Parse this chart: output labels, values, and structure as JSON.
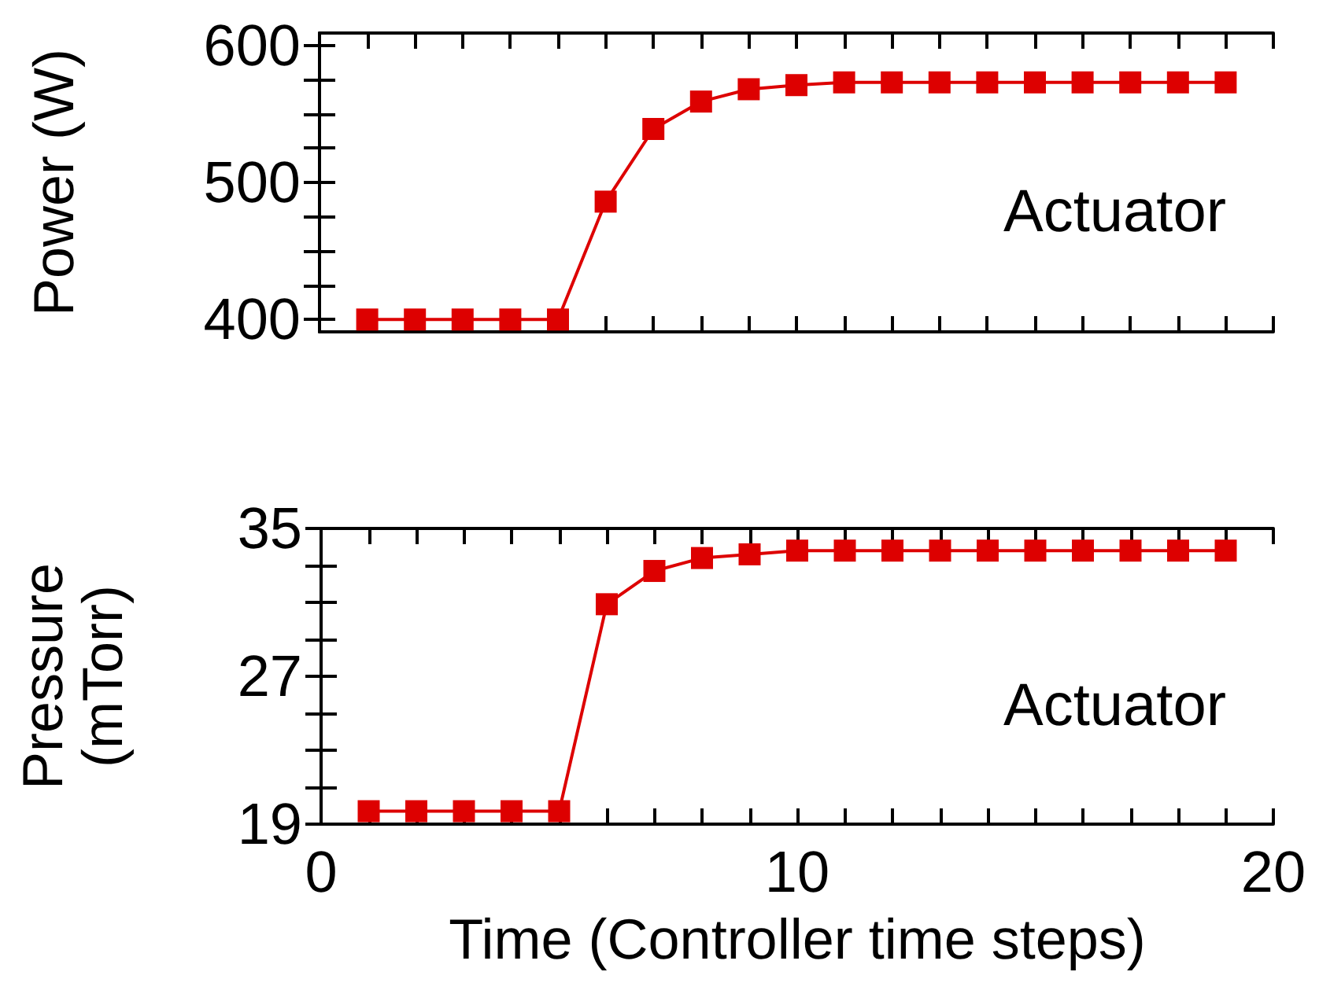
{
  "chart_data": [
    {
      "type": "line",
      "ylabel": "Power (W)",
      "x": [
        1,
        2,
        3,
        4,
        5,
        6,
        7,
        8,
        9,
        10,
        11,
        12,
        13,
        14,
        15,
        16,
        17,
        18,
        19
      ],
      "series": [
        {
          "color": "#dd0000",
          "values": [
            400,
            400,
            400,
            400,
            400,
            486,
            539,
            559,
            568,
            571,
            573,
            573,
            573,
            573,
            573,
            573,
            573,
            573,
            573
          ]
        }
      ],
      "xlim": [
        0,
        20
      ],
      "xticks": [
        0,
        {
          "value": 1,
          "label": null
        },
        {
          "value": 2,
          "label": null
        },
        {
          "value": 3,
          "label": null
        },
        {
          "value": 4,
          "label": null
        },
        {
          "value": 5,
          "label": null
        },
        {
          "value": 6,
          "label": null
        },
        {
          "value": 7,
          "label": null
        },
        {
          "value": 8,
          "label": null
        },
        {
          "value": 9,
          "label": null
        },
        10,
        {
          "value": 11,
          "label": null
        },
        {
          "value": 12,
          "label": null
        },
        {
          "value": 13,
          "label": null
        },
        {
          "value": 14,
          "label": null
        },
        {
          "value": 15,
          "label": null
        },
        {
          "value": 16,
          "label": null
        },
        {
          "value": 17,
          "label": null
        },
        {
          "value": 18,
          "label": null
        },
        {
          "value": 19,
          "label": null
        },
        20
      ],
      "ylim": [
        391,
        609
      ],
      "yticks": [
        400,
        {
          "value": 425,
          "label": null
        },
        {
          "value": 450,
          "label": null
        },
        {
          "value": 475,
          "label": null
        },
        500,
        {
          "value": 525,
          "label": null
        },
        {
          "value": 550,
          "label": null
        },
        {
          "value": 575,
          "label": null
        },
        600
      ],
      "tick_labels": "y",
      "marker": "square",
      "line_style": "solid",
      "annotations": [
        "Actuator"
      ]
    },
    {
      "type": "line",
      "ylabel": "Pressure\n(mTorr)",
      "xlabel": "Time (Controller time steps)",
      "x": [
        1,
        2,
        3,
        4,
        5,
        6,
        7,
        8,
        9,
        10,
        11,
        12,
        13,
        14,
        15,
        16,
        17,
        18,
        19
      ],
      "series": [
        {
          "color": "#dd0000",
          "values": [
            19.7,
            19.7,
            19.7,
            19.7,
            19.7,
            30.9,
            32.7,
            33.4,
            33.6,
            33.8,
            33.8,
            33.8,
            33.8,
            33.8,
            33.8,
            33.8,
            33.8,
            33.8,
            33.8
          ]
        }
      ],
      "xlim": [
        0,
        20
      ],
      "xticks": [
        0,
        {
          "value": 1,
          "label": null
        },
        {
          "value": 2,
          "label": null
        },
        {
          "value": 3,
          "label": null
        },
        {
          "value": 4,
          "label": null
        },
        {
          "value": 5,
          "label": null
        },
        {
          "value": 6,
          "label": null
        },
        {
          "value": 7,
          "label": null
        },
        {
          "value": 8,
          "label": null
        },
        {
          "value": 9,
          "label": null
        },
        10,
        {
          "value": 11,
          "label": null
        },
        {
          "value": 12,
          "label": null
        },
        {
          "value": 13,
          "label": null
        },
        {
          "value": 14,
          "label": null
        },
        {
          "value": 15,
          "label": null
        },
        {
          "value": 16,
          "label": null
        },
        {
          "value": 17,
          "label": null
        },
        {
          "value": 18,
          "label": null
        },
        {
          "value": 19,
          "label": null
        },
        20
      ],
      "ylim": [
        19,
        35
      ],
      "yticks": [
        19,
        {
          "value": 21,
          "label": null
        },
        {
          "value": 23,
          "label": null
        },
        {
          "value": 25,
          "label": null
        },
        27,
        {
          "value": 29,
          "label": null
        },
        {
          "value": 31,
          "label": null
        },
        {
          "value": 33,
          "label": null
        },
        35
      ],
      "marker": "square",
      "line_style": "solid",
      "annotations": [
        "Actuator"
      ]
    }
  ]
}
